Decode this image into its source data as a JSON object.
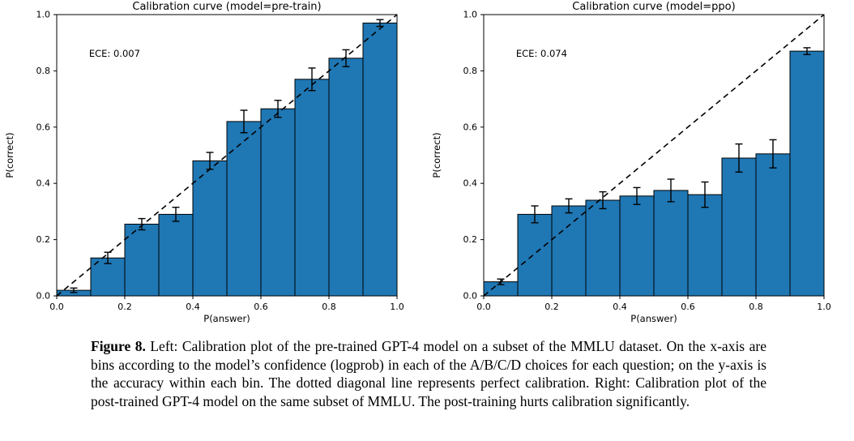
{
  "figure": {
    "caption_label": "Figure 8.",
    "caption_text": " Left: Calibration plot of the pre-trained GPT-4 model on a subset of the MMLU dataset. On the x-axis are bins according to the model’s confidence (logprob) in each of the A/B/C/D choices for each question; on the y-axis is the accuracy within each bin. The dotted diagonal line represents perfect calibration. Right: Calibration plot of the post-trained GPT-4 model on the same subset of MMLU. The post-training hurts calibration significantly."
  },
  "chart_data": [
    {
      "type": "bar",
      "title": "Calibration curve (model=pre-train)",
      "annotation": "ECE: 0.007",
      "xlabel": "P(answer)",
      "ylabel": "P(correct)",
      "xlim": [
        0,
        1
      ],
      "ylim": [
        0,
        1
      ],
      "x_ticks": [
        "0.0",
        "0.2",
        "0.4",
        "0.6",
        "0.8",
        "1.0"
      ],
      "y_ticks": [
        "0.0",
        "0.2",
        "0.4",
        "0.6",
        "0.8",
        "1.0"
      ],
      "bin_edges": [
        0.0,
        0.1,
        0.2,
        0.3,
        0.4,
        0.5,
        0.6,
        0.7,
        0.8,
        0.9,
        1.0
      ],
      "values": [
        0.02,
        0.135,
        0.255,
        0.29,
        0.48,
        0.62,
        0.665,
        0.77,
        0.845,
        0.97
      ],
      "errors": [
        0.008,
        0.02,
        0.02,
        0.025,
        0.03,
        0.04,
        0.03,
        0.04,
        0.03,
        0.012
      ],
      "diagonal": true,
      "grid": false,
      "bar_color": "#1f77b4",
      "bar_edge_color": "#000000"
    },
    {
      "type": "bar",
      "title": "Calibration curve (model=ppo)",
      "annotation": "ECE: 0.074",
      "xlabel": "P(answer)",
      "ylabel": "P(correct)",
      "xlim": [
        0,
        1
      ],
      "ylim": [
        0,
        1
      ],
      "x_ticks": [
        "0.0",
        "0.2",
        "0.4",
        "0.6",
        "0.8",
        "1.0"
      ],
      "y_ticks": [
        "0.0",
        "0.2",
        "0.4",
        "0.6",
        "0.8",
        "1.0"
      ],
      "bin_edges": [
        0.0,
        0.1,
        0.2,
        0.3,
        0.4,
        0.5,
        0.6,
        0.7,
        0.8,
        0.9,
        1.0
      ],
      "values": [
        0.05,
        0.29,
        0.32,
        0.34,
        0.355,
        0.375,
        0.36,
        0.49,
        0.505,
        0.87
      ],
      "errors": [
        0.01,
        0.03,
        0.025,
        0.03,
        0.03,
        0.04,
        0.045,
        0.05,
        0.05,
        0.012
      ],
      "diagonal": true,
      "grid": false,
      "bar_color": "#1f77b4",
      "bar_edge_color": "#000000"
    }
  ]
}
